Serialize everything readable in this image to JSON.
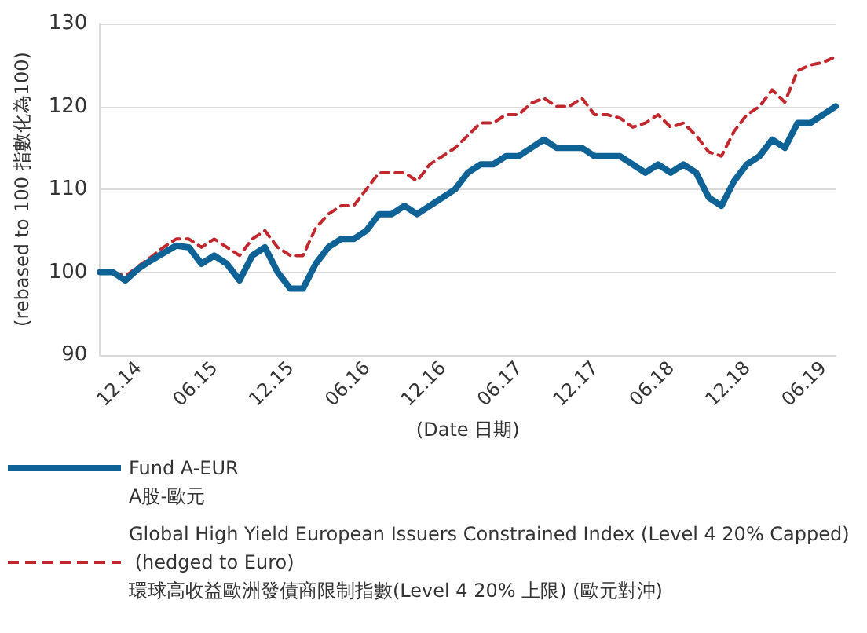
{
  "chart_data": {
    "type": "line",
    "xlabel": "(Date 日期)",
    "ylabel": "(rebased to 100 指數化為100)",
    "categories": [
      null,
      null,
      null,
      "12.14",
      null,
      null,
      null,
      null,
      null,
      "06.15",
      null,
      null,
      null,
      null,
      null,
      "12.15",
      null,
      null,
      null,
      null,
      null,
      "06.16",
      null,
      null,
      null,
      null,
      null,
      "12.16",
      null,
      null,
      null,
      null,
      null,
      "06.17",
      null,
      null,
      null,
      null,
      null,
      "12.17",
      null,
      null,
      null,
      null,
      null,
      "06.18",
      null,
      null,
      null,
      null,
      null,
      "12.18",
      null,
      null,
      null,
      null,
      null,
      "06.19",
      null
    ],
    "series": [
      {
        "name": "Fund A-EUR\nA股-歐元",
        "color": "#0f6295",
        "line_style": "solid",
        "values": [
          100,
          100,
          99,
          100.4,
          101.4,
          102.3,
          103.2,
          103,
          101,
          102,
          101,
          99,
          102,
          103,
          100,
          98,
          98,
          101,
          103,
          104,
          104,
          105,
          107,
          107,
          108,
          107,
          108,
          109,
          110,
          112,
          113,
          113,
          114,
          114,
          115,
          116,
          115,
          115,
          115,
          114,
          114,
          114,
          113,
          112,
          113,
          112,
          113,
          112,
          109,
          108,
          111,
          113,
          114,
          116,
          115,
          118,
          118,
          119,
          120
        ]
      },
      {
        "name": "Global High Yield European Issuers Constrained Index (Level 4 20% Capped) (hedged to Euro)\n環球高收益歐洲發債商限制指數(Level 4 20% 上限) (歐元對沖)",
        "color": "#c1272d",
        "line_style": "dashed",
        "values": [
          100,
          100,
          99.5,
          100.7,
          101.8,
          103,
          104,
          104,
          103,
          104,
          103,
          102,
          104,
          105,
          103,
          102,
          102,
          105.3,
          107,
          108,
          108,
          110,
          112,
          112,
          112,
          111,
          113,
          114,
          115,
          116.5,
          118,
          118,
          119,
          119,
          120.4,
          121,
          120,
          120,
          121,
          119,
          119,
          118.6,
          117.5,
          118,
          119,
          117.5,
          118,
          116.5,
          114.5,
          114,
          117,
          119,
          120,
          122,
          120.5,
          124.3,
          125,
          125.3,
          126
        ]
      }
    ],
    "ylim": [
      90,
      130
    ],
    "yticks": [
      90,
      100,
      110,
      120,
      130
    ],
    "grid": "y",
    "legend": "bottom"
  }
}
